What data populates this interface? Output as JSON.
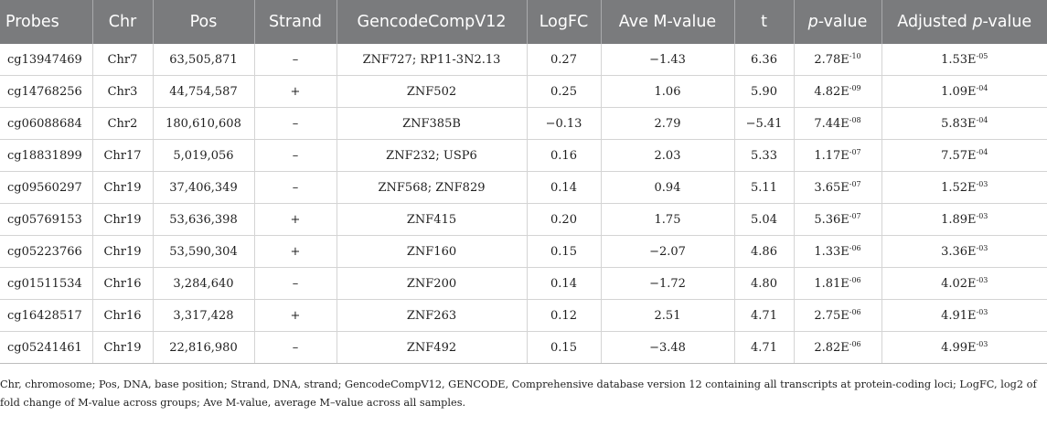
{
  "headers": [
    "Probes",
    "Chr",
    "Pos",
    "Strand",
    "GencodeCompV12",
    "LogFC",
    "Ave M-value",
    "t",
    "p",
    "-value",
    "Adjusted ",
    "p",
    "-value"
  ],
  "rows": [
    {
      "probe": "cg13947469",
      "chr": "Chr7",
      "pos": "63,505,871",
      "strand": "–",
      "gene": "ZNF727; RP11-3N2.13",
      "logfc": "0.27",
      "avem": "−1.43",
      "t": "6.36",
      "p_base": "2.78E",
      "p_exp": "-10",
      "adj_base": "1.53E",
      "adj_exp": "-05"
    },
    {
      "probe": "cg14768256",
      "chr": "Chr3",
      "pos": "44,754,587",
      "strand": "+",
      "gene": "ZNF502",
      "logfc": "0.25",
      "avem": "1.06",
      "t": "5.90",
      "p_base": "4.82E",
      "p_exp": "-09",
      "adj_base": "1.09E",
      "adj_exp": "-04"
    },
    {
      "probe": "cg06088684",
      "chr": "Chr2",
      "pos": "180,610,608",
      "strand": "–",
      "gene": "ZNF385B",
      "logfc": "−0.13",
      "avem": "2.79",
      "t": "−5.41",
      "p_base": "7.44E",
      "p_exp": "-08",
      "adj_base": "5.83E",
      "adj_exp": "-04"
    },
    {
      "probe": "cg18831899",
      "chr": "Chr17",
      "pos": "5,019,056",
      "strand": "–",
      "gene": "ZNF232; USP6",
      "logfc": "0.16",
      "avem": "2.03",
      "t": "5.33",
      "p_base": "1.17E",
      "p_exp": "-07",
      "adj_base": "7.57E",
      "adj_exp": "-04"
    },
    {
      "probe": "cg09560297",
      "chr": "Chr19",
      "pos": "37,406,349",
      "strand": "–",
      "gene": "ZNF568; ZNF829",
      "logfc": "0.14",
      "avem": "0.94",
      "t": "5.11",
      "p_base": "3.65E",
      "p_exp": "-07",
      "adj_base": "1.52E",
      "adj_exp": "-03"
    },
    {
      "probe": "cg05769153",
      "chr": "Chr19",
      "pos": "53,636,398",
      "strand": "+",
      "gene": "ZNF415",
      "logfc": "0.20",
      "avem": "1.75",
      "t": "5.04",
      "p_base": "5.36E",
      "p_exp": "-07",
      "adj_base": "1.89E",
      "adj_exp": "-03"
    },
    {
      "probe": "cg05223766",
      "chr": "Chr19",
      "pos": "53,590,304",
      "strand": "+",
      "gene": "ZNF160",
      "logfc": "0.15",
      "avem": "−2.07",
      "t": "4.86",
      "p_base": "1.33E",
      "p_exp": "-06",
      "adj_base": "3.36E",
      "adj_exp": "-03"
    },
    {
      "probe": "cg01511534",
      "chr": "Chr16",
      "pos": "3,284,640",
      "strand": "–",
      "gene": "ZNF200",
      "logfc": "0.14",
      "avem": "−1.72",
      "t": "4.80",
      "p_base": "1.81E",
      "p_exp": "-06",
      "adj_base": "4.02E",
      "adj_exp": "-03"
    },
    {
      "probe": "cg16428517",
      "chr": "Chr16",
      "pos": "3,317,428",
      "strand": "+",
      "gene": "ZNF263",
      "logfc": "0.12",
      "avem": "2.51",
      "t": "4.71",
      "p_base": "2.75E",
      "p_exp": "-06",
      "adj_base": "4.91E",
      "adj_exp": "-03"
    },
    {
      "probe": "cg05241461",
      "chr": "Chr19",
      "pos": "22,816,980",
      "strand": "–",
      "gene": "ZNF492",
      "logfc": "0.15",
      "avem": "−3.48",
      "t": "4.71",
      "p_base": "2.82E",
      "p_exp": "-06",
      "adj_base": "4.99E",
      "adj_exp": "-03"
    }
  ],
  "footnote": "Chr, chromosome; Pos, DNA, base position; Strand, DNA, strand; GencodeCompV12, GENCODE, Comprehensive database version 12 containing all transcripts at protein-coding loci; LogFC, log2 of fold change of M-value across groups; Ave M-value, average M–value across all samples.",
  "colors": {
    "header_bg": "#7a7b7d",
    "header_text": "#ffffff",
    "grid": "#d4d4d4"
  }
}
